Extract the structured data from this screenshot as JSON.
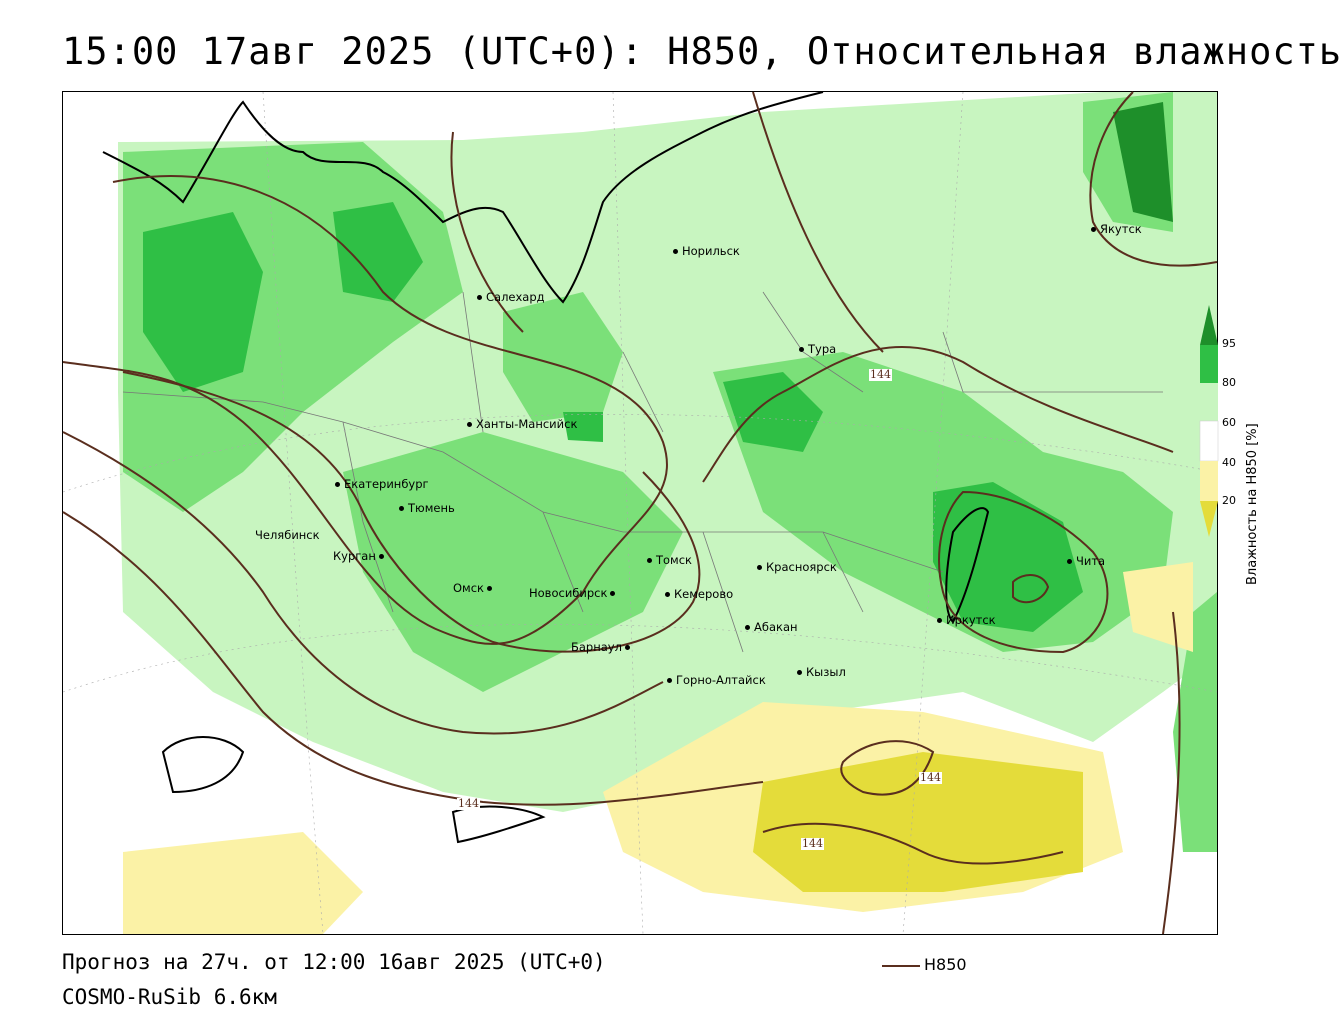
{
  "header": {
    "title": "15:00 17авг 2025 (UTC+0): H850, Относительная влажность"
  },
  "map": {
    "cities": [
      {
        "name": "Норильск",
        "label": "Норильск"
      },
      {
        "name": "Якутск",
        "label": "Якутск"
      },
      {
        "name": "Салехард",
        "label": "Салехард"
      },
      {
        "name": "Тура",
        "label": "Тура"
      },
      {
        "name": "Ханты-Мансийск",
        "label": "Ханты-Мансийск"
      },
      {
        "name": "Екатеринбург",
        "label": "Екатеринбург"
      },
      {
        "name": "Тюмень",
        "label": "Тюмень"
      },
      {
        "name": "Челябинск",
        "label": "Челябинск"
      },
      {
        "name": "Курган",
        "label": "Курган"
      },
      {
        "name": "Омск",
        "label": "Омск"
      },
      {
        "name": "Новосибирск",
        "label": "Новосибирск"
      },
      {
        "name": "Томск",
        "label": "Томск"
      },
      {
        "name": "Кемерово",
        "label": "Кемерово"
      },
      {
        "name": "Красноярск",
        "label": "Красноярск"
      },
      {
        "name": "Абакан",
        "label": "Абакан"
      },
      {
        "name": "Барнаул",
        "label": "Барнаул"
      },
      {
        "name": "Горно-Алтайск",
        "label": "Горно-Алтайск"
      },
      {
        "name": "Кызыл",
        "label": "Кызыл"
      },
      {
        "name": "Иркутск",
        "label": "Иркутск"
      },
      {
        "name": "Чита",
        "label": "Чита"
      }
    ],
    "isoline_labels": [
      "144",
      "144",
      "144",
      "144"
    ],
    "colors": {
      "green_light": "#c8f5c0",
      "green_mid": "#7be079",
      "green_dark": "#2fbf45",
      "green_darkest": "#1e8f2a",
      "yellow_light": "#fbf2a6",
      "yellow_dark": "#e4dc3a",
      "isoline": "#5a2e1e"
    }
  },
  "legend": {
    "title": "Влажность на H850 [%]",
    "ticks": [
      "95",
      "80",
      "60",
      "40",
      "20"
    ],
    "colors": [
      "#1e8f2a",
      "#2fbf45",
      "#c8f5c0",
      "#ffffff",
      "#fbf2a6",
      "#e4dc3a"
    ]
  },
  "footer": {
    "forecast": "Прогноз на 27ч. от 12:00 16авг 2025 (UTC+0)",
    "model": "COSMO-RuSib 6.6км",
    "isoline_legend": "H850"
  }
}
